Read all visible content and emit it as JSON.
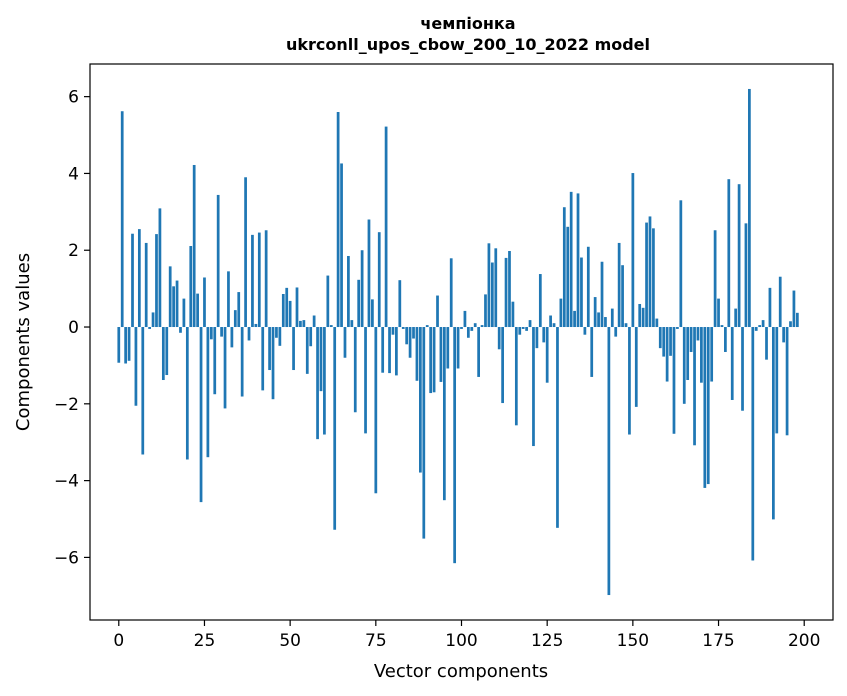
{
  "chart_data": {
    "type": "bar",
    "title": "чемпіонка\nukrconll_upos_cbow_200_10_2022 model",
    "xlabel": "Vector components",
    "ylabel": "Components values",
    "xlim": [
      -8.4,
      208.4
    ],
    "ylim": [
      -7.63,
      6.85
    ],
    "xticks": [
      0,
      25,
      50,
      75,
      100,
      125,
      150,
      175,
      200
    ],
    "yticks": [
      -6,
      -4,
      -2,
      0,
      2,
      4,
      6
    ],
    "grid": false,
    "bar_color": "#1f77b4",
    "values": [
      -0.93,
      5.62,
      -0.95,
      -0.88,
      2.43,
      -2.05,
      2.55,
      -3.32,
      2.19,
      -0.05,
      0.38,
      2.42,
      3.09,
      -1.38,
      -1.25,
      1.58,
      1.06,
      1.21,
      -0.15,
      0.74,
      -3.45,
      2.11,
      4.22,
      0.87,
      -4.56,
      1.29,
      -3.39,
      -0.32,
      -1.75,
      3.44,
      -0.25,
      -2.12,
      1.45,
      -0.53,
      0.44,
      0.91,
      -1.81,
      3.9,
      -0.35,
      2.4,
      0.08,
      2.46,
      -1.65,
      2.52,
      -1.12,
      -1.88,
      -0.28,
      -0.49,
      0.86,
      1.02,
      0.68,
      -1.12,
      1.03,
      0.16,
      0.18,
      -1.22,
      -0.5,
      0.3,
      -2.92,
      -1.67,
      -2.8,
      1.34,
      0.05,
      -5.28,
      5.6,
      4.26,
      -0.8,
      1.85,
      0.18,
      -2.22,
      1.23,
      2.0,
      -2.77,
      2.8,
      0.72,
      -4.33,
      2.47,
      -1.19,
      5.22,
      -1.2,
      -0.2,
      -1.26,
      1.22,
      -0.05,
      -0.45,
      -0.8,
      -0.3,
      -1.4,
      -3.79,
      -5.51,
      0.05,
      -1.72,
      -1.7,
      0.82,
      -1.43,
      -4.51,
      -1.08,
      1.79,
      -6.15,
      -1.08,
      -0.05,
      0.42,
      -0.28,
      -0.1,
      0.1,
      -1.3,
      0.05,
      0.85,
      2.18,
      1.68,
      2.05,
      -0.58,
      -1.98,
      1.8,
      1.98,
      0.66,
      -2.56,
      -0.2,
      -0.05,
      -0.1,
      0.18,
      -3.1,
      -0.55,
      1.38,
      -0.4,
      -1.45,
      0.3,
      0.1,
      -5.23,
      0.74,
      3.12,
      2.61,
      3.52,
      0.42,
      3.48,
      1.81,
      -0.2,
      2.09,
      -1.3,
      0.78,
      0.38,
      1.7,
      0.26,
      -6.98,
      0.48,
      -0.25,
      2.19,
      1.61,
      0.1,
      -2.8,
      4.01,
      -2.08,
      0.6,
      0.5,
      2.72,
      2.88,
      2.57,
      0.22,
      -0.55,
      -0.77,
      -1.42,
      -0.75,
      -2.78,
      -0.05,
      3.3,
      -2.0,
      -1.38,
      -0.65,
      -3.08,
      -0.35,
      -1.45,
      -4.19,
      -4.09,
      -1.42,
      2.52,
      0.74,
      0.05,
      -0.65,
      3.85,
      -1.9,
      0.48,
      3.72,
      -2.18,
      2.7,
      6.2,
      -6.08,
      -0.1,
      0.05,
      0.18,
      -0.85,
      1.02,
      -5.01,
      -2.77,
      1.31,
      -0.4,
      -2.82,
      0.15,
      0.95,
      0.37
    ]
  }
}
